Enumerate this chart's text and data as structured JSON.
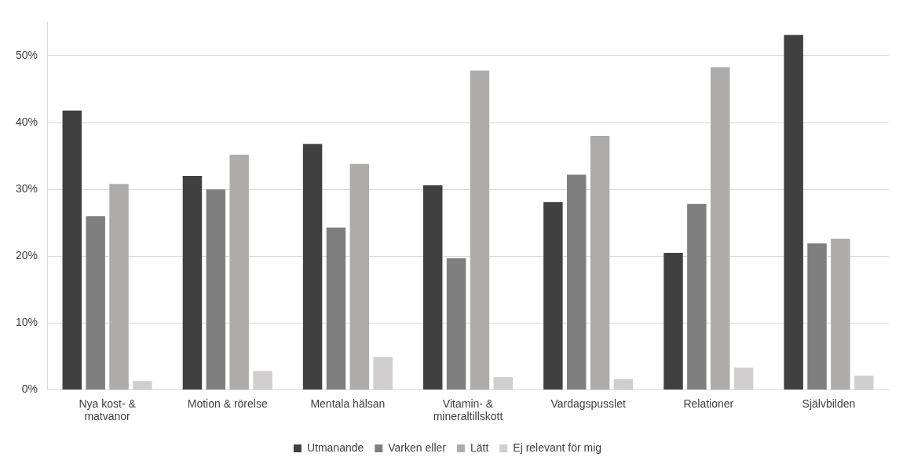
{
  "chart_data": {
    "type": "bar",
    "categories": [
      "Nya kost- & matvanor",
      "Motion & rörelse",
      "Mentala hälsan",
      "Vitamin- & mineraltillskott",
      "Vardagspusslet",
      "Relationer",
      "Självbilden"
    ],
    "series": [
      {
        "name": "Utmanande",
        "color": "#404040",
        "values": [
          41.8,
          32.0,
          36.8,
          30.6,
          28.1,
          20.5,
          53.1
        ]
      },
      {
        "name": "Varken eller",
        "color": "#7f7f7f",
        "values": [
          26.0,
          30.0,
          24.3,
          19.7,
          32.2,
          27.8,
          21.9
        ]
      },
      {
        "name": "Lätt",
        "color": "#aeabab",
        "values": [
          30.8,
          35.2,
          33.8,
          47.8,
          38.0,
          48.3,
          22.6
        ]
      },
      {
        "name": "Ej relevant för mig",
        "color": "#d0cece",
        "values": [
          1.3,
          2.8,
          4.9,
          1.9,
          1.6,
          3.3,
          2.1
        ]
      }
    ],
    "ylim": [
      0,
      55
    ],
    "yticks": [
      {
        "value": 0,
        "label": "0%"
      },
      {
        "value": 10,
        "label": "10%"
      },
      {
        "value": 20,
        "label": "20%"
      },
      {
        "value": 30,
        "label": "30%"
      },
      {
        "value": 40,
        "label": "40%"
      },
      {
        "value": 50,
        "label": "50%"
      }
    ],
    "grid": "y",
    "legend": "bottom"
  }
}
